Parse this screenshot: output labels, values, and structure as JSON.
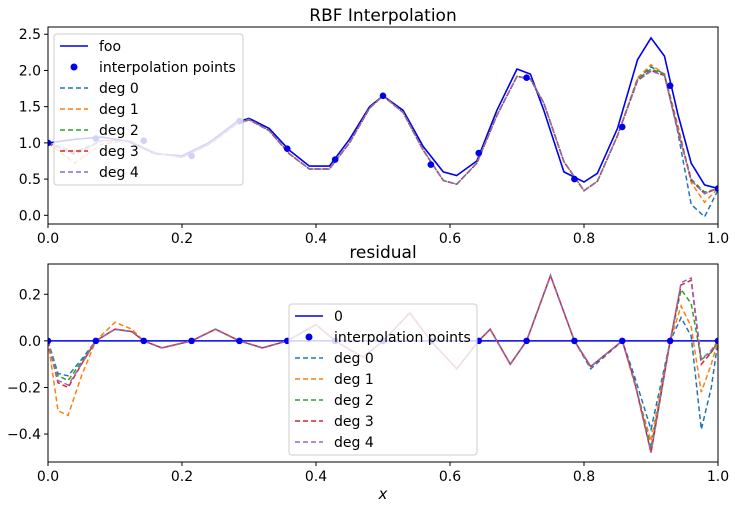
{
  "chart_data": [
    {
      "type": "line",
      "title": "RBF Interpolation",
      "xlabel": "",
      "ylabel": "",
      "xlim": [
        0,
        1
      ],
      "ylim": [
        -0.12,
        2.6
      ],
      "xticks": [
        "0.0",
        "0.2",
        "0.4",
        "0.6",
        "0.8",
        "1.0"
      ],
      "yticks": [
        "0.0",
        "0.5",
        "1.0",
        "1.5",
        "2.0",
        "2.5"
      ],
      "legend": {
        "placement": "upper-left",
        "entries": [
          "foo",
          "interpolation points",
          "deg 0",
          "deg 1",
          "deg 2",
          "deg 3",
          "deg 4"
        ]
      },
      "points": {
        "name": "interpolation points",
        "x": [
          0.0,
          0.0714,
          0.1429,
          0.2143,
          0.2857,
          0.3571,
          0.4286,
          0.5,
          0.5714,
          0.6429,
          0.7143,
          0.7857,
          0.8571,
          0.9286,
          1.0
        ],
        "y": [
          1.0,
          1.06,
          1.03,
          0.82,
          1.3,
          0.92,
          0.77,
          1.65,
          0.7,
          0.86,
          1.9,
          0.5,
          1.22,
          1.79,
          0.37
        ]
      },
      "true_function": {
        "name": "foo",
        "x": [
          0,
          0.04,
          0.08,
          0.12,
          0.16,
          0.2,
          0.24,
          0.28,
          0.3,
          0.33,
          0.36,
          0.39,
          0.42,
          0.45,
          0.48,
          0.5,
          0.53,
          0.56,
          0.59,
          0.61,
          0.64,
          0.67,
          0.7,
          0.72,
          0.74,
          0.77,
          0.8,
          0.82,
          0.85,
          0.88,
          0.9,
          0.92,
          0.94,
          0.96,
          0.98,
          1.0
        ],
        "y": [
          1.0,
          1.05,
          1.08,
          1.02,
          0.85,
          0.82,
          1.0,
          1.28,
          1.34,
          1.2,
          0.9,
          0.68,
          0.68,
          1.05,
          1.5,
          1.65,
          1.45,
          0.95,
          0.6,
          0.55,
          0.75,
          1.45,
          2.02,
          1.95,
          1.45,
          0.6,
          0.46,
          0.58,
          1.2,
          2.15,
          2.45,
          2.2,
          1.4,
          0.72,
          0.42,
          0.37
        ]
      },
      "series": [
        {
          "name": "deg 0",
          "color": "#1f77b4",
          "y": [
            1.0,
            0.85,
            1.03,
            1.03,
            0.86,
            0.8,
            0.98,
            1.25,
            1.33,
            1.17,
            0.85,
            0.64,
            0.64,
            1.0,
            1.48,
            1.65,
            1.42,
            0.9,
            0.48,
            0.43,
            0.72,
            1.38,
            1.92,
            1.88,
            1.55,
            0.74,
            0.34,
            0.47,
            1.1,
            1.88,
            2.05,
            1.95,
            1.15,
            0.15,
            -0.02,
            0.35
          ]
        },
        {
          "name": "deg 1",
          "color": "#ff7f0e",
          "y": [
            1.0,
            0.72,
            0.98,
            1.04,
            0.86,
            0.8,
            0.98,
            1.25,
            1.32,
            1.17,
            0.85,
            0.64,
            0.64,
            1.0,
            1.48,
            1.65,
            1.42,
            0.9,
            0.48,
            0.43,
            0.72,
            1.38,
            1.92,
            1.88,
            1.55,
            0.74,
            0.34,
            0.47,
            1.1,
            1.9,
            2.08,
            1.95,
            1.25,
            0.45,
            0.18,
            0.37
          ]
        },
        {
          "name": "deg 2",
          "color": "#2ca02c",
          "y": [
            1.0,
            0.88,
            1.03,
            1.03,
            0.86,
            0.8,
            0.98,
            1.25,
            1.32,
            1.17,
            0.85,
            0.64,
            0.64,
            1.0,
            1.48,
            1.65,
            1.42,
            0.9,
            0.48,
            0.43,
            0.72,
            1.38,
            1.92,
            1.88,
            1.55,
            0.74,
            0.34,
            0.47,
            1.1,
            1.88,
            2.02,
            1.95,
            1.2,
            0.5,
            0.32,
            0.37
          ]
        },
        {
          "name": "deg 3",
          "color": "#d62728",
          "y": [
            1.0,
            0.84,
            1.03,
            1.03,
            0.86,
            0.8,
            0.98,
            1.25,
            1.32,
            1.17,
            0.85,
            0.64,
            0.64,
            1.0,
            1.48,
            1.65,
            1.42,
            0.9,
            0.48,
            0.43,
            0.72,
            1.38,
            1.92,
            1.88,
            1.55,
            0.74,
            0.34,
            0.47,
            1.1,
            1.86,
            2.0,
            1.93,
            1.18,
            0.48,
            0.3,
            0.37
          ]
        },
        {
          "name": "deg 4",
          "color": "#9467bd",
          "y": [
            1.0,
            0.86,
            1.03,
            1.03,
            0.86,
            0.8,
            0.98,
            1.25,
            1.32,
            1.17,
            0.85,
            0.64,
            0.64,
            1.0,
            1.48,
            1.65,
            1.42,
            0.9,
            0.48,
            0.43,
            0.72,
            1.38,
            1.92,
            1.88,
            1.55,
            0.74,
            0.34,
            0.47,
            1.1,
            1.86,
            1.99,
            1.93,
            1.18,
            0.48,
            0.3,
            0.37
          ]
        }
      ]
    },
    {
      "type": "line",
      "title": "residual",
      "xlabel": "x",
      "ylabel": "",
      "xlim": [
        0,
        1
      ],
      "ylim": [
        -0.52,
        0.33
      ],
      "xticks": [
        "0.0",
        "0.2",
        "0.4",
        "0.6",
        "0.8",
        "1.0"
      ],
      "yticks": [
        "−0.4",
        "−0.2",
        "0.0",
        "0.2"
      ],
      "legend": {
        "placement": "center",
        "entries": [
          "0",
          "interpolation points",
          "deg 0",
          "deg 1",
          "deg 2",
          "deg 3",
          "deg 4"
        ]
      },
      "zero_line": {
        "name": "0",
        "y": 0
      },
      "points": {
        "name": "interpolation points",
        "x": [
          0.0,
          0.0714,
          0.1429,
          0.2143,
          0.2857,
          0.3571,
          0.4286,
          0.5,
          0.5714,
          0.6429,
          0.7143,
          0.7857,
          0.8571,
          0.9286,
          1.0
        ],
        "y": [
          0,
          0,
          0,
          0,
          0,
          0,
          0,
          0,
          0,
          0,
          0,
          0,
          0,
          0,
          0
        ]
      },
      "series": [
        {
          "name": "deg 0",
          "color": "#1f77b4",
          "x": [
            0,
            0.015,
            0.03,
            0.05,
            0.0714,
            0.1,
            0.125,
            0.1429,
            0.17,
            0.2143,
            0.25,
            0.2857,
            0.32,
            0.3571,
            0.4,
            0.4286,
            0.47,
            0.5,
            0.54,
            0.5714,
            0.61,
            0.6429,
            0.66,
            0.69,
            0.7143,
            0.75,
            0.7857,
            0.81,
            0.8571,
            0.875,
            0.9,
            0.9286,
            0.945,
            0.96,
            0.975,
            0.99,
            1.0
          ],
          "y": [
            0,
            -0.14,
            -0.15,
            -0.08,
            0,
            0.05,
            0.04,
            0,
            -0.03,
            0,
            0.05,
            0,
            -0.03,
            0,
            0.07,
            0,
            -0.07,
            0,
            0.12,
            0,
            -0.12,
            0,
            0.05,
            -0.1,
            0,
            0.28,
            0,
            -0.12,
            0,
            -0.15,
            -0.38,
            0,
            0.1,
            0.02,
            -0.38,
            -0.2,
            0
          ]
        },
        {
          "name": "deg 1",
          "color": "#ff7f0e",
          "x": [
            0,
            0.015,
            0.03,
            0.05,
            0.0714,
            0.1,
            0.125,
            0.1429,
            0.17,
            0.2143,
            0.25,
            0.2857,
            0.32,
            0.3571,
            0.4,
            0.4286,
            0.47,
            0.5,
            0.54,
            0.5714,
            0.61,
            0.6429,
            0.66,
            0.69,
            0.7143,
            0.75,
            0.7857,
            0.81,
            0.8571,
            0.875,
            0.9,
            0.9286,
            0.945,
            0.96,
            0.975,
            0.99,
            1.0
          ],
          "y": [
            0,
            -0.3,
            -0.32,
            -0.15,
            0,
            0.08,
            0.05,
            0,
            -0.03,
            0,
            0.05,
            0,
            -0.03,
            0,
            0.07,
            0,
            -0.07,
            0,
            0.12,
            0,
            -0.12,
            0,
            0.05,
            -0.1,
            0,
            0.28,
            0,
            -0.11,
            0,
            -0.18,
            -0.43,
            0,
            0.15,
            0.06,
            -0.22,
            -0.1,
            0
          ]
        },
        {
          "name": "deg 2",
          "color": "#2ca02c",
          "x": [
            0,
            0.015,
            0.03,
            0.05,
            0.0714,
            0.1,
            0.125,
            0.1429,
            0.17,
            0.2143,
            0.25,
            0.2857,
            0.32,
            0.3571,
            0.4,
            0.4286,
            0.47,
            0.5,
            0.54,
            0.5714,
            0.61,
            0.6429,
            0.66,
            0.69,
            0.7143,
            0.75,
            0.7857,
            0.81,
            0.8571,
            0.875,
            0.9,
            0.9286,
            0.945,
            0.96,
            0.975,
            0.99,
            1.0
          ],
          "y": [
            0,
            -0.15,
            -0.17,
            -0.09,
            0,
            0.05,
            0.04,
            0,
            -0.03,
            0,
            0.05,
            0,
            -0.03,
            0,
            0.07,
            0,
            -0.07,
            0,
            0.12,
            0,
            -0.12,
            0,
            0.05,
            -0.1,
            0,
            0.28,
            0,
            -0.11,
            0,
            -0.17,
            -0.46,
            0,
            0.22,
            0.16,
            -0.08,
            -0.05,
            0
          ]
        },
        {
          "name": "deg 3",
          "color": "#d62728",
          "x": [
            0,
            0.015,
            0.03,
            0.05,
            0.0714,
            0.1,
            0.125,
            0.1429,
            0.17,
            0.2143,
            0.25,
            0.2857,
            0.32,
            0.3571,
            0.4,
            0.4286,
            0.47,
            0.5,
            0.54,
            0.5714,
            0.61,
            0.6429,
            0.66,
            0.69,
            0.7143,
            0.75,
            0.7857,
            0.81,
            0.8571,
            0.875,
            0.9,
            0.9286,
            0.945,
            0.96,
            0.975,
            0.99,
            1.0
          ],
          "y": [
            0,
            -0.18,
            -0.2,
            -0.1,
            0,
            0.05,
            0.04,
            0,
            -0.03,
            0,
            0.05,
            0,
            -0.03,
            0,
            0.07,
            0,
            -0.07,
            0,
            0.12,
            0,
            -0.12,
            0,
            0.05,
            -0.1,
            0,
            0.28,
            0,
            -0.11,
            0,
            -0.17,
            -0.48,
            0,
            0.24,
            0.26,
            -0.1,
            -0.05,
            0
          ]
        },
        {
          "name": "deg 4",
          "color": "#9467bd",
          "x": [
            0,
            0.015,
            0.03,
            0.05,
            0.0714,
            0.1,
            0.125,
            0.1429,
            0.17,
            0.2143,
            0.25,
            0.2857,
            0.32,
            0.3571,
            0.4,
            0.4286,
            0.47,
            0.5,
            0.54,
            0.5714,
            0.61,
            0.6429,
            0.66,
            0.69,
            0.7143,
            0.75,
            0.7857,
            0.81,
            0.8571,
            0.875,
            0.9,
            0.9286,
            0.945,
            0.96,
            0.975,
            0.99,
            1.0
          ],
          "y": [
            0,
            -0.17,
            -0.19,
            -0.1,
            0,
            0.05,
            0.04,
            0,
            -0.03,
            0,
            0.05,
            0,
            -0.03,
            0,
            0.07,
            0,
            -0.07,
            0,
            0.12,
            0,
            -0.12,
            0,
            0.05,
            -0.1,
            0,
            0.28,
            0,
            -0.11,
            0,
            -0.17,
            -0.48,
            0,
            0.25,
            0.27,
            -0.08,
            -0.04,
            0
          ]
        }
      ]
    }
  ]
}
